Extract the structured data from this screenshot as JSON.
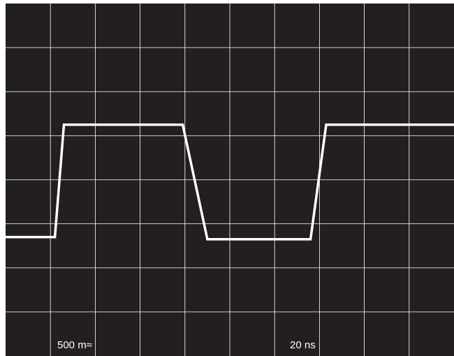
{
  "chart_data": {
    "type": "line",
    "title": "",
    "xlabel": "",
    "ylabel": "",
    "grid": true,
    "graticule": {
      "x_divisions": 10,
      "y_divisions": 8
    },
    "xlim": [
      0,
      10
    ],
    "ylim": [
      -4,
      4
    ],
    "series": [
      {
        "x": [
          0.0,
          1.1,
          1.3,
          3.95,
          4.5,
          6.8,
          7.15,
          10.0
        ],
        "y": [
          -1.3,
          -1.3,
          1.25,
          1.25,
          -1.35,
          -1.35,
          1.25,
          1.25
        ]
      }
    ],
    "readouts": {
      "volts_per_div": "500 m",
      "coupling_symbol": "≈",
      "time_per_div": "20 ns"
    }
  },
  "colors": {
    "screen": "#231f20",
    "frame": "#ffffff",
    "grid": "#ffffff",
    "trace": "#ffffff",
    "text": "#ffffff"
  }
}
